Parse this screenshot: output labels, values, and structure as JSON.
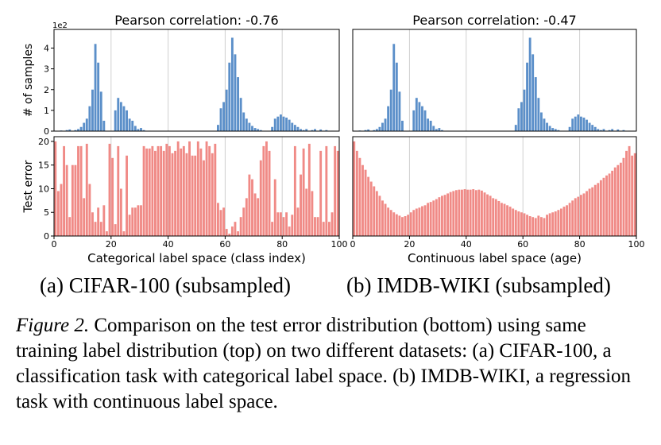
{
  "chart_data": [
    {
      "type": "bar",
      "title": "Pearson correlation: -0.76",
      "y_label": "# of samples",
      "y_offset_label": "1e2",
      "color": "#5b8fc9",
      "x": [
        0,
        1,
        2,
        3,
        4,
        5,
        6,
        7,
        8,
        9,
        10,
        11,
        12,
        13,
        14,
        15,
        16,
        17,
        18,
        19,
        20,
        21,
        22,
        23,
        24,
        25,
        26,
        27,
        28,
        29,
        30,
        31,
        32,
        33,
        34,
        35,
        36,
        37,
        38,
        39,
        40,
        41,
        42,
        43,
        44,
        45,
        46,
        47,
        48,
        49,
        50,
        51,
        52,
        53,
        54,
        55,
        56,
        57,
        58,
        59,
        60,
        61,
        62,
        63,
        64,
        65,
        66,
        67,
        68,
        69,
        70,
        71,
        72,
        73,
        74,
        75,
        76,
        77,
        78,
        79,
        80,
        81,
        82,
        83,
        84,
        85,
        86,
        87,
        88,
        89,
        90,
        91,
        92,
        93,
        94,
        95,
        96,
        97,
        98,
        99
      ],
      "values": [
        0.02,
        0,
        0.03,
        0,
        0.05,
        0.08,
        0,
        0.05,
        0.1,
        0.2,
        0.4,
        0.6,
        1.2,
        2.0,
        4.2,
        3.3,
        1.9,
        0.5,
        0,
        0,
        0,
        1.0,
        1.6,
        1.4,
        1.2,
        1.0,
        0.6,
        0.5,
        0.25,
        0.1,
        0.15,
        0.05,
        0,
        0.02,
        0,
        0,
        0,
        0,
        0,
        0,
        0,
        0,
        0,
        0,
        0,
        0,
        0,
        0,
        0,
        0,
        0,
        0,
        0,
        0,
        0,
        0,
        0,
        0.3,
        1.1,
        1.4,
        2.0,
        3.3,
        4.5,
        3.7,
        2.6,
        1.6,
        0.9,
        0.6,
        0.4,
        0.25,
        0.15,
        0.1,
        0.05,
        0,
        0,
        0,
        0.2,
        0.6,
        0.7,
        0.8,
        0.7,
        0.65,
        0.55,
        0.4,
        0.3,
        0.2,
        0.1,
        0.05,
        0.1,
        0,
        0.05,
        0.1,
        0,
        0.08,
        0.02,
        0.05,
        0,
        0.02,
        0,
        0
      ],
      "xlim": [
        0,
        100
      ],
      "xticks": [
        0,
        20,
        40,
        60,
        80,
        100
      ],
      "ylim": [
        0,
        4.9
      ],
      "yticks": [
        0,
        1,
        2,
        3,
        4
      ],
      "grid": true
    },
    {
      "type": "bar",
      "y_label": "Test error",
      "x_label": "Categorical label space (class index)",
      "color": "#f08a86",
      "x": [
        0,
        1,
        2,
        3,
        4,
        5,
        6,
        7,
        8,
        9,
        10,
        11,
        12,
        13,
        14,
        15,
        16,
        17,
        18,
        19,
        20,
        21,
        22,
        23,
        24,
        25,
        26,
        27,
        28,
        29,
        30,
        31,
        32,
        33,
        34,
        35,
        36,
        37,
        38,
        39,
        40,
        41,
        42,
        43,
        44,
        45,
        46,
        47,
        48,
        49,
        50,
        51,
        52,
        53,
        54,
        55,
        56,
        57,
        58,
        59,
        60,
        61,
        62,
        63,
        64,
        65,
        66,
        67,
        68,
        69,
        70,
        71,
        72,
        73,
        74,
        75,
        76,
        77,
        78,
        79,
        80,
        81,
        82,
        83,
        84,
        85,
        86,
        87,
        88,
        89,
        90,
        91,
        92,
        93,
        94,
        95,
        96,
        97,
        98,
        99
      ],
      "values": [
        20,
        9.5,
        11,
        19,
        15,
        4,
        15,
        15,
        19,
        19,
        8,
        19.5,
        11,
        5,
        3,
        6,
        3,
        6.5,
        1,
        19.5,
        16.5,
        2.5,
        19,
        10,
        1,
        17,
        4.5,
        6,
        6,
        6.5,
        6.5,
        19,
        18.5,
        18.5,
        19,
        18,
        19,
        19,
        18,
        19.5,
        19,
        17.5,
        18,
        20,
        18.5,
        19,
        17.5,
        20,
        17,
        17,
        20,
        18.5,
        16,
        20,
        19,
        17.5,
        19.5,
        7,
        5.5,
        6,
        1.5,
        0.5,
        2,
        3,
        1,
        4,
        6,
        8,
        13,
        12,
        9,
        8,
        16,
        19,
        20,
        18,
        3,
        12,
        5,
        5,
        4,
        5,
        2,
        4.5,
        19,
        6,
        13,
        18.5,
        10,
        19.5,
        9.5,
        4,
        4,
        18,
        3,
        19,
        3,
        5,
        19,
        18
      ],
      "xlim": [
        0,
        100
      ],
      "xticks": [
        0,
        20,
        40,
        60,
        80,
        100
      ],
      "ylim": [
        0,
        21
      ],
      "yticks": [
        0,
        5,
        10,
        15,
        20
      ],
      "grid": true
    },
    {
      "type": "bar",
      "title": "Pearson correlation: -0.47",
      "color": "#5b8fc9",
      "x": [
        0,
        1,
        2,
        3,
        4,
        5,
        6,
        7,
        8,
        9,
        10,
        11,
        12,
        13,
        14,
        15,
        16,
        17,
        18,
        19,
        20,
        21,
        22,
        23,
        24,
        25,
        26,
        27,
        28,
        29,
        30,
        31,
        32,
        33,
        34,
        35,
        36,
        37,
        38,
        39,
        40,
        41,
        42,
        43,
        44,
        45,
        46,
        47,
        48,
        49,
        50,
        51,
        52,
        53,
        54,
        55,
        56,
        57,
        58,
        59,
        60,
        61,
        62,
        63,
        64,
        65,
        66,
        67,
        68,
        69,
        70,
        71,
        72,
        73,
        74,
        75,
        76,
        77,
        78,
        79,
        80,
        81,
        82,
        83,
        84,
        85,
        86,
        87,
        88,
        89,
        90,
        91,
        92,
        93,
        94,
        95,
        96,
        97,
        98,
        99
      ],
      "values": [
        0.02,
        0,
        0.03,
        0,
        0.05,
        0.08,
        0,
        0.05,
        0.1,
        0.2,
        0.4,
        0.6,
        1.2,
        2.0,
        4.2,
        3.3,
        1.9,
        0.5,
        0,
        0,
        0,
        1.0,
        1.6,
        1.4,
        1.2,
        1.0,
        0.6,
        0.5,
        0.25,
        0.1,
        0.15,
        0.05,
        0,
        0.02,
        0,
        0,
        0,
        0,
        0,
        0,
        0,
        0,
        0,
        0,
        0,
        0,
        0,
        0,
        0,
        0,
        0,
        0,
        0,
        0,
        0,
        0,
        0,
        0.3,
        1.1,
        1.4,
        2.0,
        3.3,
        4.5,
        3.7,
        2.6,
        1.6,
        0.9,
        0.6,
        0.4,
        0.25,
        0.15,
        0.1,
        0.05,
        0,
        0,
        0,
        0.2,
        0.6,
        0.7,
        0.8,
        0.7,
        0.65,
        0.55,
        0.4,
        0.3,
        0.2,
        0.1,
        0.05,
        0.1,
        0,
        0.05,
        0.1,
        0,
        0.08,
        0.02,
        0.05,
        0,
        0.02,
        0,
        0
      ],
      "xlim": [
        0,
        100
      ],
      "xticks": [
        0,
        20,
        40,
        60,
        80,
        100
      ],
      "ylim": [
        0,
        4.9
      ],
      "grid": true
    },
    {
      "type": "bar",
      "x_label": "Continuous label space (age)",
      "color": "#f08a86",
      "x": [
        0,
        1,
        2,
        3,
        4,
        5,
        6,
        7,
        8,
        9,
        10,
        11,
        12,
        13,
        14,
        15,
        16,
        17,
        18,
        19,
        20,
        21,
        22,
        23,
        24,
        25,
        26,
        27,
        28,
        29,
        30,
        31,
        32,
        33,
        34,
        35,
        36,
        37,
        38,
        39,
        40,
        41,
        42,
        43,
        44,
        45,
        46,
        47,
        48,
        49,
        50,
        51,
        52,
        53,
        54,
        55,
        56,
        57,
        58,
        59,
        60,
        61,
        62,
        63,
        64,
        65,
        66,
        67,
        68,
        69,
        70,
        71,
        72,
        73,
        74,
        75,
        76,
        77,
        78,
        79,
        80,
        81,
        82,
        83,
        84,
        85,
        86,
        87,
        88,
        89,
        90,
        91,
        92,
        93,
        94,
        95,
        96,
        97,
        98,
        99
      ],
      "values": [
        20,
        18,
        16.5,
        15,
        14,
        12.5,
        11.5,
        10.5,
        9.5,
        8.5,
        7.5,
        6.8,
        6,
        5.5,
        5,
        4.6,
        4.3,
        4,
        4.2,
        4.5,
        5,
        5.5,
        5.8,
        6,
        6.3,
        6.5,
        7,
        7.2,
        7.5,
        7.8,
        8.2,
        8.5,
        8.7,
        9,
        9.3,
        9.5,
        9.7,
        9.8,
        9.8,
        9.9,
        9.8,
        9.8,
        9.9,
        9.7,
        9.8,
        9.6,
        9.2,
        8.8,
        8.5,
        8,
        7.8,
        7.4,
        7,
        6.8,
        6.5,
        6.2,
        5.8,
        5.5,
        5.2,
        5,
        4.8,
        4.5,
        4.2,
        4,
        3.8,
        4.3,
        4,
        3.8,
        4.5,
        4.8,
        5,
        5.2,
        5.5,
        5.8,
        6.2,
        6.5,
        7,
        7.5,
        8,
        8.3,
        8.7,
        9,
        9.5,
        10,
        10.3,
        10.8,
        11.2,
        11.8,
        12.3,
        12.8,
        13.2,
        13.8,
        14.5,
        15,
        15.5,
        16.5,
        18,
        19,
        17,
        17.5
      ],
      "xlim": [
        0,
        100
      ],
      "xticks": [
        0,
        20,
        40,
        60,
        80,
        100
      ],
      "ylim": [
        0,
        21
      ],
      "grid": true
    }
  ],
  "subcaptions": [
    "(a)  CIFAR-100 (subsampled)",
    "(b)  IMDB-WIKI (subsampled)"
  ],
  "caption": {
    "label": "Figure 2.",
    "text": " Comparison on the test error distribution (bottom) using same training label distribution (top) on two different datasets: (a) CIFAR-100, a classification task with categorical label space. (b) IMDB-WIKI, a regression task with continuous label space."
  }
}
